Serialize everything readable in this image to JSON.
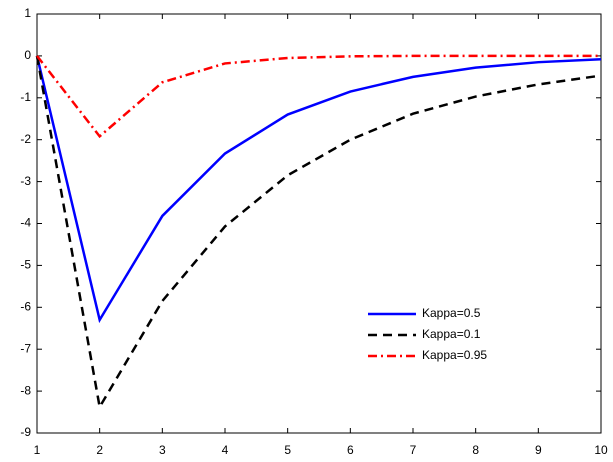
{
  "chart_data": {
    "type": "line",
    "x": [
      1,
      2,
      3,
      4,
      5,
      6,
      7,
      8,
      9,
      10
    ],
    "series": [
      {
        "name": "Kappa=0.5",
        "color": "#0000ff",
        "dash": "solid",
        "values": [
          0,
          -6.3,
          -3.82,
          -2.33,
          -1.4,
          -0.85,
          -0.5,
          -0.28,
          -0.15,
          -0.08
        ]
      },
      {
        "name": "Kappa=0.1",
        "color": "#000000",
        "dash": "dashed",
        "values": [
          0,
          -8.38,
          -5.85,
          -4.07,
          -2.85,
          -2.0,
          -1.38,
          -0.97,
          -0.68,
          -0.47
        ]
      },
      {
        "name": "Kappa=0.95",
        "color": "#ff0000",
        "dash": "dashdot",
        "values": [
          0,
          -1.92,
          -0.63,
          -0.18,
          -0.05,
          -0.01,
          0,
          0,
          0,
          0
        ]
      }
    ],
    "xlim": [
      1,
      10
    ],
    "xticks": [
      1,
      2,
      3,
      4,
      5,
      6,
      7,
      8,
      9,
      10
    ],
    "ylim": [
      -9,
      1
    ],
    "yticks": [
      -9,
      -8,
      -7,
      -6,
      -5,
      -4,
      -3,
      -2,
      -1,
      0,
      1
    ],
    "grid": false,
    "legend": "lower right"
  }
}
